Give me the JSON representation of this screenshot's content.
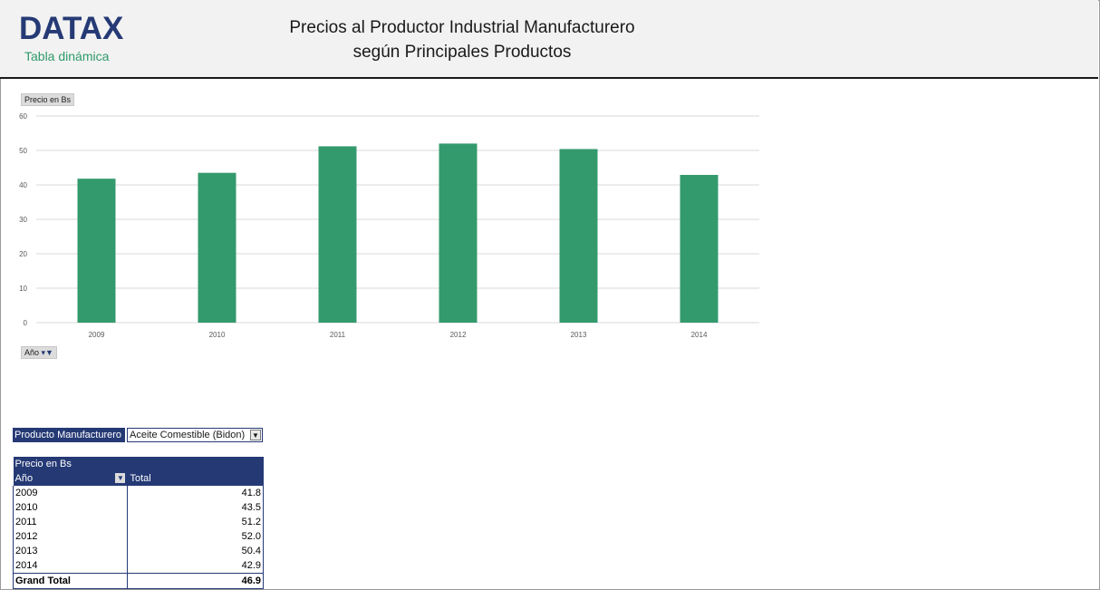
{
  "header": {
    "logo": "DATAX",
    "logo_subtitle": "Tabla dinámica",
    "title_line1": "Precios al Productor Industrial Manufacturero",
    "title_line2": "según Principales Productos"
  },
  "chart_buttons": {
    "value_field": "Precio en Bs",
    "axis_field": "Año"
  },
  "chart_data": {
    "type": "bar",
    "categories": [
      "2009",
      "2010",
      "2011",
      "2012",
      "2013",
      "2014"
    ],
    "values": [
      41.8,
      43.5,
      51.2,
      52.0,
      50.4,
      42.9
    ],
    "title": "",
    "xlabel": "",
    "ylabel": "",
    "ylim": [
      0,
      60
    ],
    "yticks": [
      0,
      10,
      20,
      30,
      40,
      50,
      60
    ],
    "bar_color": "#339a6e",
    "grid": true,
    "legend": "none"
  },
  "pivot": {
    "filter_label": "Producto Manufacturero",
    "filter_value": "Aceite Comestible (Bidon)",
    "value_header": "Precio en Bs",
    "row_header": "Año",
    "col_header": "Total",
    "rows": [
      {
        "label": "2009",
        "value": "41.8"
      },
      {
        "label": "2010",
        "value": "43.5"
      },
      {
        "label": "2011",
        "value": "51.2"
      },
      {
        "label": "2012",
        "value": "52.0"
      },
      {
        "label": "2013",
        "value": "50.4"
      },
      {
        "label": "2014",
        "value": "42.9"
      }
    ],
    "grand_label": "Grand Total",
    "grand_value": "46.9"
  },
  "colors": {
    "brand_navy": "#253a75",
    "brand_green": "#2e9a6a"
  }
}
